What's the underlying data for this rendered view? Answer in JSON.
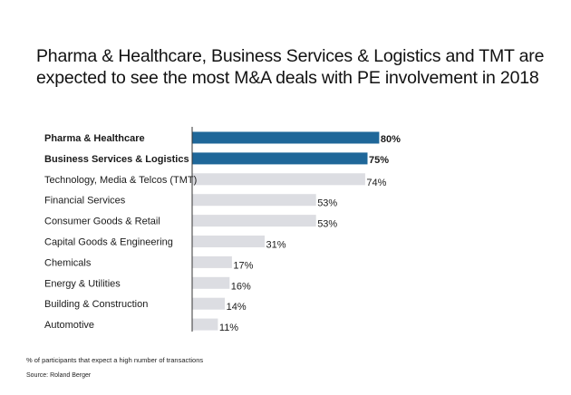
{
  "chart_data": {
    "type": "bar",
    "orientation": "horizontal",
    "title": "Pharma & Healthcare, Business Services & Logistics and TMT are expected to see the most M&A deals with PE involvement in 2018",
    "title_lines": [
      "Pharma & Healthcare, Business Services & Logistics and TMT are",
      "expected to see the most M&A deals with PE involvement in 2018"
    ],
    "categories": [
      "Pharma & Healthcare",
      "Business Services & Logistics",
      "Technology, Media & Telcos (TMT)",
      "Financial Services",
      "Consumer Goods & Retail",
      "Capital Goods & Engineering",
      "Chemicals",
      "Energy & Utilities",
      "Building & Construction",
      "Automotive"
    ],
    "values": [
      80,
      75,
      74,
      53,
      53,
      31,
      17,
      16,
      14,
      11
    ],
    "labels": [
      "80%",
      "75%",
      "74%",
      "53%",
      "53%",
      "31%",
      "17%",
      "16%",
      "14%",
      "11%"
    ],
    "highlighted": [
      true,
      true,
      false,
      false,
      false,
      false,
      false,
      false,
      false,
      false
    ],
    "unit": "%",
    "xlim": [
      0,
      100
    ],
    "grid": false,
    "highlight_color": "#1f6799",
    "base_color": "#dcdde2",
    "xlabel": "",
    "ylabel": ""
  },
  "footnote": "% of participants that expect a high number of transactions",
  "source": "Source: Roland Berger"
}
